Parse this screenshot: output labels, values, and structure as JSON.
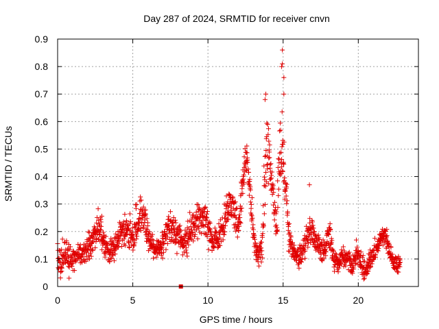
{
  "chart_data": {
    "type": "scatter",
    "title": "Day 287 of 2024, SRMTID for receiver cnvn",
    "xlabel": "GPS time / hours",
    "ylabel": "SRMTID / TECUs",
    "xlim": [
      0,
      24
    ],
    "ylim": [
      0,
      0.9
    ],
    "xticks": [
      0,
      5,
      10,
      15,
      20
    ],
    "yticks": [
      0,
      0.1,
      0.2,
      0.3,
      0.4,
      0.5,
      0.6,
      0.7,
      0.8,
      0.9
    ],
    "grid": true,
    "marker": "plus",
    "marker_color": "#e00000",
    "series": [
      {
        "name": "SRMTID",
        "anchor_x": [
          0.0,
          0.2,
          0.5,
          0.8,
          1.0,
          1.3,
          1.6,
          1.9,
          2.2,
          2.5,
          2.8,
          3.0,
          3.3,
          3.6,
          3.9,
          4.2,
          4.5,
          4.8,
          5.0,
          5.3,
          5.6,
          5.9,
          6.2,
          6.5,
          6.8,
          7.1,
          7.4,
          7.7,
          8.0,
          8.3,
          8.6,
          8.9,
          9.2,
          9.5,
          9.8,
          10.0,
          10.3,
          10.6,
          10.9,
          11.2,
          11.5,
          11.8,
          12.0,
          12.3,
          12.6,
          12.8,
          13.0,
          13.2,
          13.4,
          13.6,
          13.8,
          14.0,
          14.2,
          14.4,
          14.6,
          14.8,
          15.0,
          15.2,
          15.4,
          15.7,
          16.0,
          16.3,
          16.6,
          16.9,
          17.2,
          17.5,
          17.8,
          18.1,
          18.4,
          18.7,
          19.0,
          19.3,
          19.6,
          19.9,
          20.2,
          20.5,
          20.8,
          21.1,
          21.4,
          21.7,
          22.0,
          22.3,
          22.6,
          22.8
        ],
        "anchor_y": [
          0.11,
          0.1,
          0.12,
          0.09,
          0.1,
          0.11,
          0.12,
          0.14,
          0.16,
          0.2,
          0.22,
          0.17,
          0.14,
          0.13,
          0.16,
          0.2,
          0.22,
          0.19,
          0.18,
          0.23,
          0.25,
          0.22,
          0.16,
          0.13,
          0.14,
          0.17,
          0.22,
          0.2,
          0.19,
          0.15,
          0.17,
          0.21,
          0.24,
          0.23,
          0.27,
          0.2,
          0.16,
          0.17,
          0.2,
          0.25,
          0.3,
          0.27,
          0.2,
          0.38,
          0.47,
          0.35,
          0.2,
          0.13,
          0.12,
          0.14,
          0.43,
          0.52,
          0.4,
          0.27,
          0.22,
          0.55,
          0.45,
          0.35,
          0.18,
          0.13,
          0.1,
          0.12,
          0.2,
          0.2,
          0.16,
          0.13,
          0.14,
          0.18,
          0.1,
          0.09,
          0.11,
          0.1,
          0.07,
          0.13,
          0.08,
          0.05,
          0.1,
          0.12,
          0.17,
          0.19,
          0.15,
          0.1,
          0.08,
          0.08
        ],
        "spread": [
          0.04,
          0.05,
          0.05,
          0.05,
          0.04,
          0.03,
          0.03,
          0.04,
          0.05,
          0.05,
          0.05,
          0.05,
          0.04,
          0.04,
          0.04,
          0.04,
          0.05,
          0.05,
          0.05,
          0.05,
          0.05,
          0.05,
          0.04,
          0.03,
          0.03,
          0.04,
          0.05,
          0.05,
          0.05,
          0.04,
          0.04,
          0.05,
          0.05,
          0.05,
          0.06,
          0.05,
          0.04,
          0.04,
          0.05,
          0.05,
          0.05,
          0.05,
          0.05,
          0.06,
          0.05,
          0.06,
          0.04,
          0.03,
          0.03,
          0.04,
          0.12,
          0.1,
          0.08,
          0.06,
          0.08,
          0.16,
          0.08,
          0.07,
          0.04,
          0.03,
          0.03,
          0.04,
          0.06,
          0.05,
          0.04,
          0.03,
          0.03,
          0.04,
          0.03,
          0.03,
          0.03,
          0.03,
          0.03,
          0.03,
          0.03,
          0.03,
          0.03,
          0.03,
          0.03,
          0.03,
          0.04,
          0.03,
          0.03,
          0.03
        ],
        "density_per_hour": 75
      }
    ],
    "outliers": [
      {
        "x": 14.95,
        "y": 0.86
      },
      {
        "x": 14.95,
        "y": 0.81
      },
      {
        "x": 14.9,
        "y": 0.8
      },
      {
        "x": 15.05,
        "y": 0.76
      },
      {
        "x": 15.05,
        "y": 0.7
      },
      {
        "x": 13.85,
        "y": 0.7
      },
      {
        "x": 13.8,
        "y": 0.68
      },
      {
        "x": 16.75,
        "y": 0.37
      },
      {
        "x": 8.2,
        "y": 0.0
      }
    ]
  }
}
